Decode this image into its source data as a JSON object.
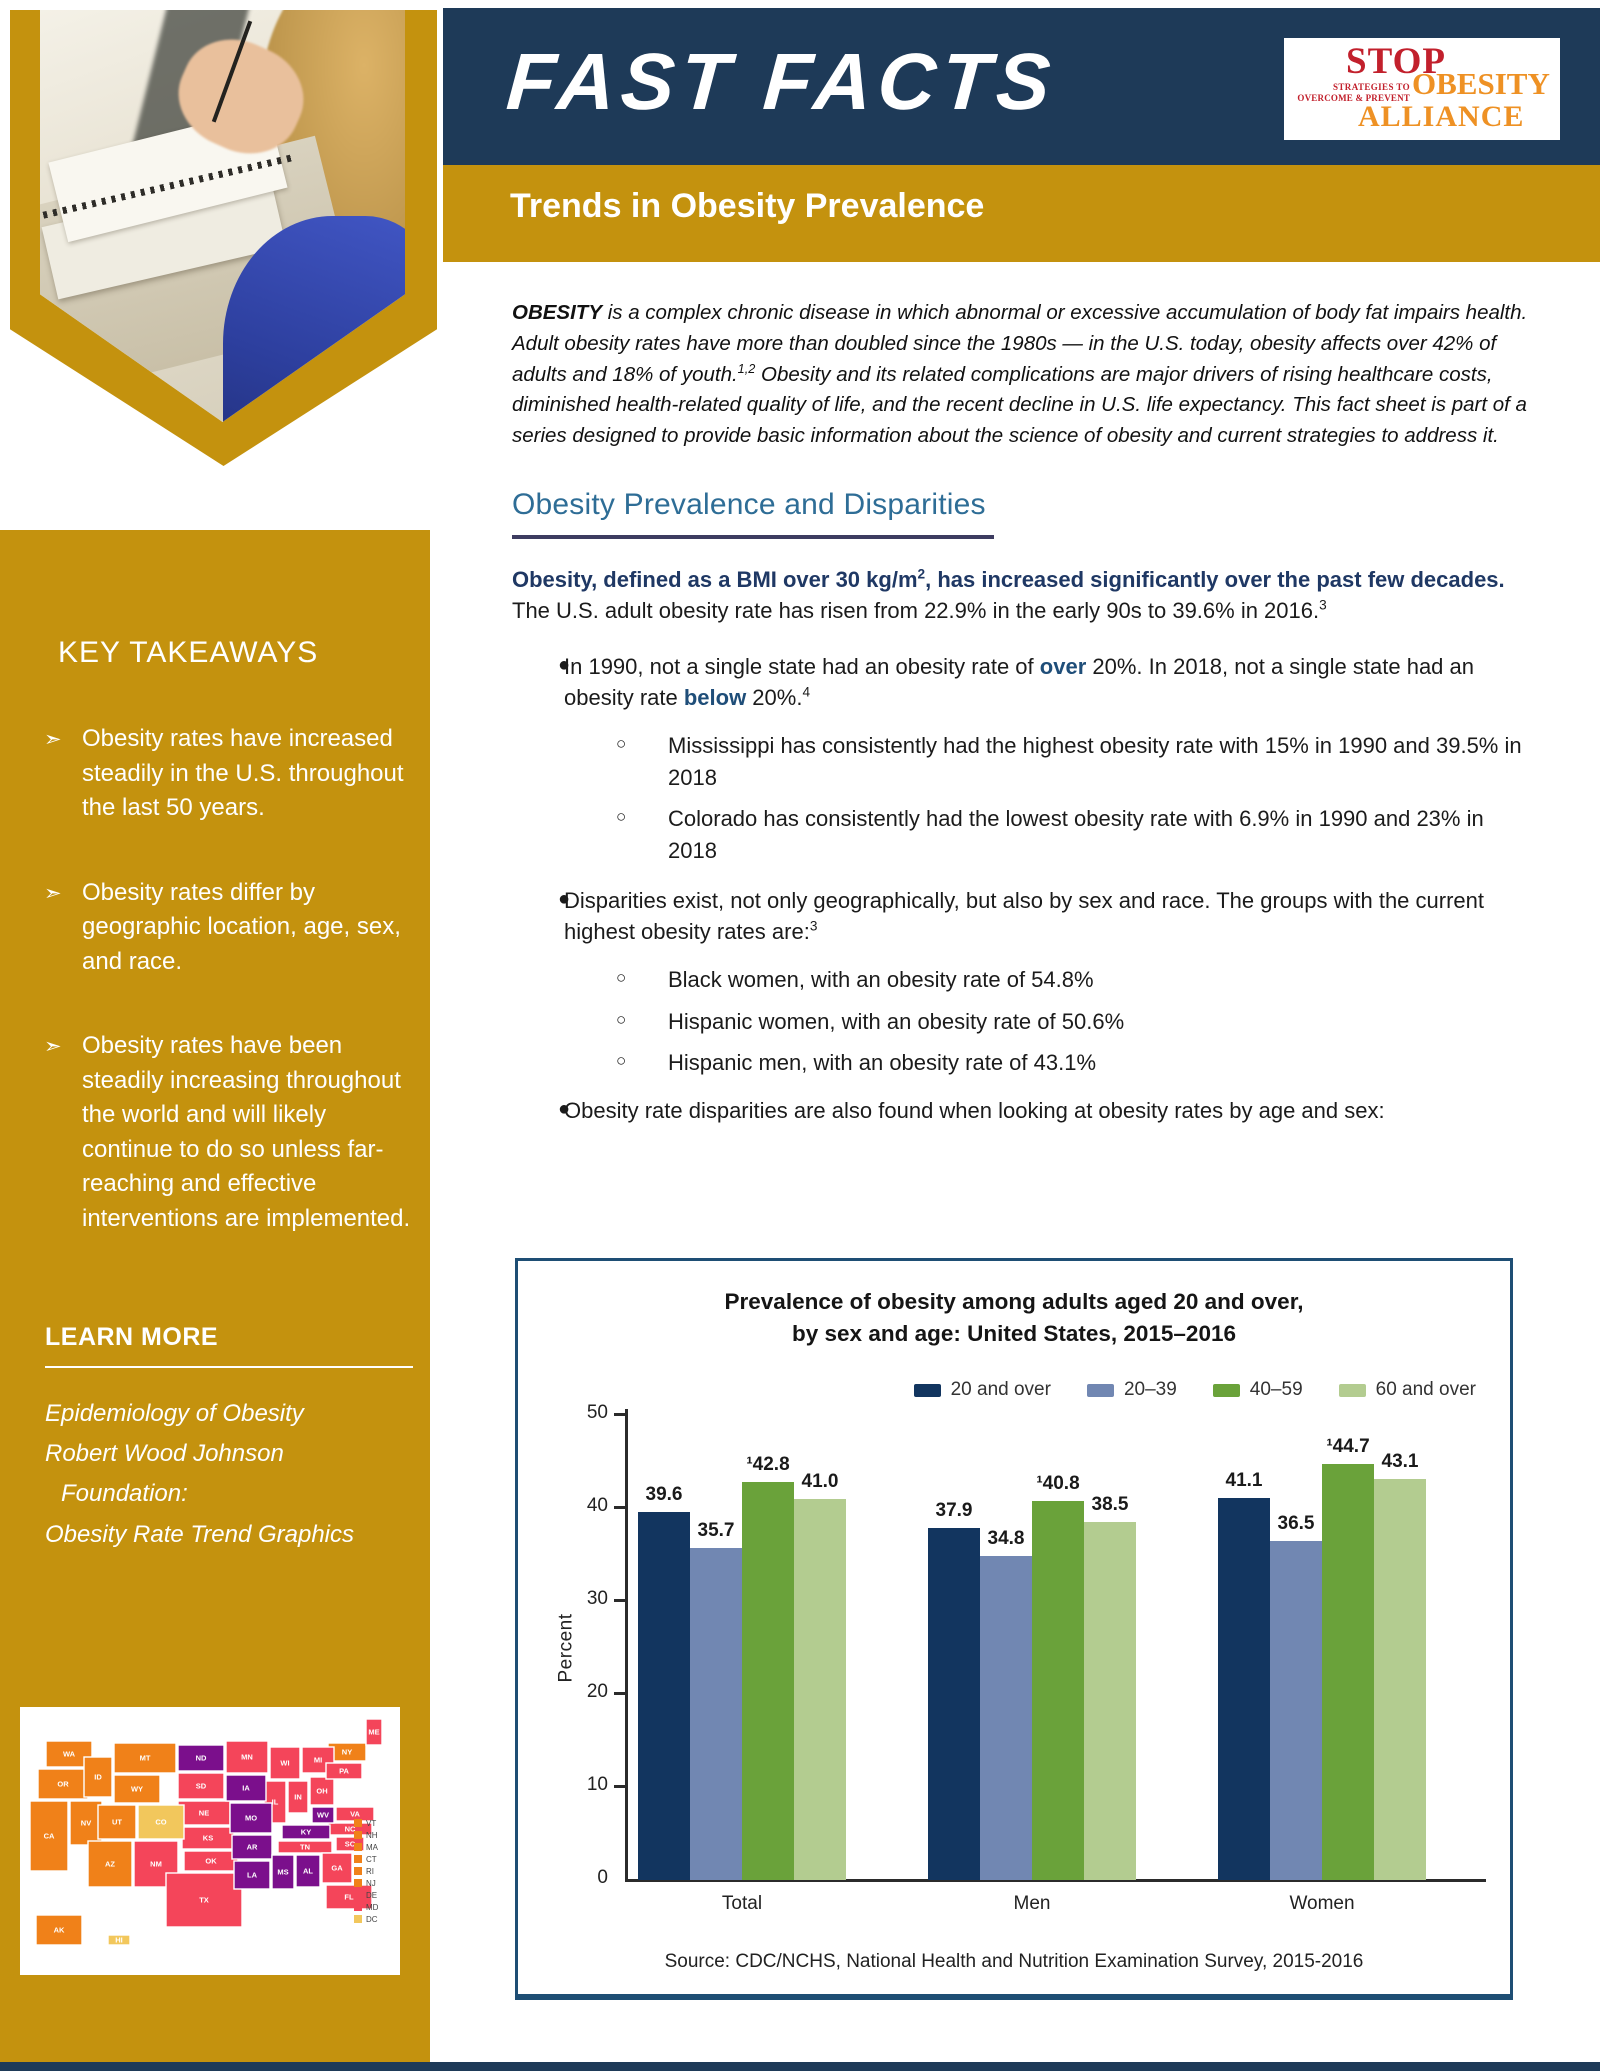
{
  "header": {
    "title": "FAST FACTS",
    "subtitle": "Trends in Obesity Prevalence",
    "logo": {
      "stop": "STOP",
      "tagline1": "STRATEGIES TO",
      "tagline2": "OVERCOME & PREVENT",
      "obesity": "OBESITY",
      "alliance": "ALLIANCE"
    }
  },
  "colors": {
    "gold": "#C4920E",
    "navy": "#1E3A58",
    "heading_blue": "#2E6D96",
    "text_navy": "#1F3864"
  },
  "intro": {
    "lead": "OBESITY",
    "part1": " is a complex chronic disease in which abnormal or excessive accumulation of body fat impairs health. Adult obesity rates have more than doubled since the 1980s — in the U.S. today, obesity affects over 42% of adults and 18% of youth.",
    "sup": "1,2",
    "part2": " Obesity and its related complications are major drivers of rising healthcare costs, diminished health-related quality of life, and the recent decline in U.S. life expectancy. This fact sheet is part of a series designed to provide basic information about the science of obesity and current strategies to address it."
  },
  "section": {
    "heading": "Obesity Prevalence and Disparities",
    "lead_bold1": "Obesity, defined as a BMI over 30 kg/m",
    "lead_sup1": "2",
    "lead_bold2": ", has increased significantly over the past few decades.",
    "lead_rest": " The U.S. adult obesity rate has risen from 22.9% in the early 90s to 39.6% in 2016.",
    "lead_sup2": "3"
  },
  "bullets": {
    "b1_pre": "In 1990, not a single state had an obesity rate of ",
    "b1_bold1": "over",
    "b1_mid": " 20%. In 2018, not a single state had an obesity rate ",
    "b1_bold2": "below",
    "b1_end": " 20%.",
    "b1_sup": "4",
    "b1_sub1": "Mississippi has consistently had the highest obesity rate with 15% in 1990 and 39.5% in 2018",
    "b1_sub2": "Colorado has consistently had the lowest obesity rate with 6.9% in 1990 and 23% in 2018",
    "b2_text": "Disparities exist, not only geographically, but also by sex and race. The groups with the current highest obesity rates are:",
    "b2_sup": "3",
    "b2_sub1": "Black women, with an obesity rate of 54.8%",
    "b2_sub2": "Hispanic women, with an obesity rate of 50.6%",
    "b2_sub3": "Hispanic men, with an obesity rate of 43.1%",
    "b3_text": "Obesity rate disparities are also found when looking at obesity rates by age and sex:"
  },
  "sidebar": {
    "takeaways_title": "KEY TAKEAWAYS",
    "items": [
      "Obesity rates have increased steadily in the U.S. throughout the last 50 years.",
      "Obesity rates differ by geographic location, age, sex, and race.",
      "Obesity rates have been steadily increasing throughout the world and will likely continue to do so unless far-reaching and effective interventions are implemented."
    ],
    "learn_more_title": "LEARN MORE",
    "links": [
      "Epidemiology of Obesity",
      "Robert Wood Johnson",
      "Foundation:",
      "Obesity Rate Trend Graphics"
    ]
  },
  "map": {
    "groups": {
      "orange": "#F08119",
      "pink": "#F4455A",
      "purple": "#7B0F8C",
      "yellow": "#F2C75C"
    },
    "states": [
      {
        "code": "WA",
        "group": "orange"
      },
      {
        "code": "OR",
        "group": "orange"
      },
      {
        "code": "CA",
        "group": "orange"
      },
      {
        "code": "NV",
        "group": "orange"
      },
      {
        "code": "ID",
        "group": "orange"
      },
      {
        "code": "MT",
        "group": "orange"
      },
      {
        "code": "WY",
        "group": "orange"
      },
      {
        "code": "UT",
        "group": "orange"
      },
      {
        "code": "AZ",
        "group": "orange"
      },
      {
        "code": "NY",
        "group": "orange"
      },
      {
        "code": "AK",
        "group": "orange"
      },
      {
        "code": "NM",
        "group": "pink"
      },
      {
        "code": "SD",
        "group": "pink"
      },
      {
        "code": "NE",
        "group": "pink"
      },
      {
        "code": "KS",
        "group": "pink"
      },
      {
        "code": "OK",
        "group": "pink"
      },
      {
        "code": "TX",
        "group": "pink"
      },
      {
        "code": "MN",
        "group": "pink"
      },
      {
        "code": "WI",
        "group": "pink"
      },
      {
        "code": "IL",
        "group": "pink"
      },
      {
        "code": "MI",
        "group": "pink"
      },
      {
        "code": "IN",
        "group": "pink"
      },
      {
        "code": "OH",
        "group": "pink"
      },
      {
        "code": "TN",
        "group": "pink"
      },
      {
        "code": "GA",
        "group": "pink"
      },
      {
        "code": "FL",
        "group": "pink"
      },
      {
        "code": "SC",
        "group": "pink"
      },
      {
        "code": "NC",
        "group": "pink"
      },
      {
        "code": "VA",
        "group": "pink"
      },
      {
        "code": "PA",
        "group": "pink"
      },
      {
        "code": "ME",
        "group": "pink"
      },
      {
        "code": "ND",
        "group": "purple"
      },
      {
        "code": "IA",
        "group": "purple"
      },
      {
        "code": "MO",
        "group": "purple"
      },
      {
        "code": "AR",
        "group": "purple"
      },
      {
        "code": "LA",
        "group": "purple"
      },
      {
        "code": "KY",
        "group": "purple"
      },
      {
        "code": "MS",
        "group": "purple"
      },
      {
        "code": "AL",
        "group": "purple"
      },
      {
        "code": "WV",
        "group": "purple"
      },
      {
        "code": "CO",
        "group": "yellow"
      },
      {
        "code": "HI",
        "group": "yellow"
      }
    ],
    "legend": [
      {
        "code": "VT",
        "group": "orange"
      },
      {
        "code": "NH",
        "group": "orange"
      },
      {
        "code": "MA",
        "group": "orange"
      },
      {
        "code": "CT",
        "group": "orange"
      },
      {
        "code": "RI",
        "group": "orange"
      },
      {
        "code": "NJ",
        "group": "orange"
      },
      {
        "code": "DE",
        "group": "pink"
      },
      {
        "code": "MD",
        "group": "pink"
      },
      {
        "code": "DC",
        "group": "yellow"
      }
    ]
  },
  "chart_data": {
    "type": "bar",
    "title_line1": "Prevalence of obesity among adults aged 20 and over,",
    "title_line2": "by sex and age: United States, 2015–2016",
    "categories": [
      "Total",
      "Men",
      "Women"
    ],
    "series": [
      {
        "name": "20 and over",
        "color": "#12355F",
        "values": [
          39.6,
          37.9,
          41.1
        ],
        "labels": [
          "39.6",
          "37.9",
          "41.1"
        ]
      },
      {
        "name": "20–39",
        "color": "#7187B2",
        "values": [
          35.7,
          34.8,
          36.5
        ],
        "labels": [
          "35.7",
          "34.8",
          "36.5"
        ]
      },
      {
        "name": "40–59",
        "color": "#6AA23A",
        "values": [
          42.8,
          40.8,
          44.7
        ],
        "labels": [
          "¹42.8",
          "¹40.8",
          "¹44.7"
        ]
      },
      {
        "name": "60 and over",
        "color": "#B3CC90",
        "values": [
          41.0,
          38.5,
          43.1
        ],
        "labels": [
          "41.0",
          "38.5",
          "43.1"
        ]
      }
    ],
    "ylabel": "Percent",
    "ylim": [
      0,
      50
    ],
    "yticks": [
      0,
      10,
      20,
      30,
      40,
      50
    ],
    "grid": false,
    "legend_position": "top-right",
    "source": "Source: CDC/NCHS, National Health and Nutrition Examination Survey, 2015-2016"
  }
}
